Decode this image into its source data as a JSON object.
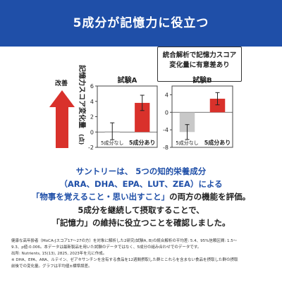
{
  "header": {
    "title": "5成分が記憶力に役立つ"
  },
  "callout": {
    "line1": "統合解析で記憶力スコア",
    "line2": "変化量に有意差あり"
  },
  "arrow": {
    "label": "改善"
  },
  "chart_data": [
    {
      "type": "bar",
      "title": "試験A",
      "ylabel": "記憶力スコア変化量",
      "ylabel_suffix": "(点)",
      "ylim": [
        -2,
        6
      ],
      "yticks": [
        -2,
        0,
        2,
        4,
        6
      ],
      "categories": [
        "5成分なし",
        "5成分あり"
      ],
      "values": [
        0.1,
        3.8
      ],
      "errors": [
        1.1,
        1.0
      ],
      "colors": [
        "#c8c8c8",
        "#d9312b"
      ]
    },
    {
      "type": "bar",
      "title": "試験B",
      "ylim": [
        -8,
        6
      ],
      "yticks": [
        -8,
        -4,
        0,
        4
      ],
      "categories": [
        "5成分なし",
        "5成分あり"
      ],
      "values": [
        -4.5,
        3.1
      ],
      "errors": [
        1.7,
        1.4
      ],
      "colors": [
        "#c8c8c8",
        "#d9312b"
      ]
    }
  ],
  "summary": {
    "l1a": "サントリーは、",
    "l1b": "5つの知的栄養成分",
    "l2": "（ARA、DHA、EPA、LUT、ZEA）による",
    "l3a": "「物事を覚えること・思い出すこと」",
    "l3b": "の両方の機能を評価。",
    "l4": "5成分を継続して摂取することで、",
    "l5": "「記憶力」の維持に役立つことを確認しました。"
  },
  "footnote": {
    "f1": "健康な高年齢者（MoCA-Jスコア17〜27の方）を対象に解析した2研究(試験A, B)の統合解析の平均差: 5.4、95%信頼区間: 1.5〜",
    "f2": "9.3、p値:0.006。本データは最新製品を用いた試験のデータではなく、5成分の組み合わせでのデータです。",
    "f3": "出所: Nutrients, 15(13), 2825, 2023年を元に作成。",
    "f4": "※ DHA、EPA、ARA、ルテイン、ゼアキサンチンを含有する食品を12週間摂取した群とこれらを含まない食品を摂取した群の摂取",
    "f5": "前後での変化量。グラフは平均値±標準誤差。"
  }
}
